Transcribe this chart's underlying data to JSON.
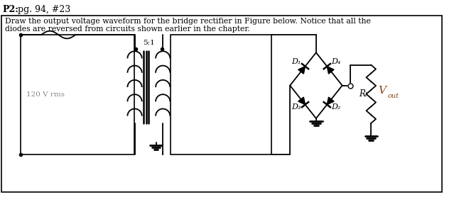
{
  "title_bold": "P2:",
  "title_rest": " pg. 94, #23",
  "description_line1": "Draw the output voltage waveform for the bridge rectifier in Figure below. Notice that all the",
  "description_line2": "diodes are reversed from circuits shown earlier in the chapter.",
  "source_label": "120 V rms",
  "transformer_ratio": "5:1",
  "diode_labels": [
    "D₁",
    "D₂",
    "D₃",
    "D₄"
  ],
  "rl_label": "Rₗ",
  "vout_label": "V",
  "vout_sub": "out",
  "bg_color": "#ffffff",
  "line_color": "#000000",
  "text_color": "#000000",
  "vout_color": "#8B4513"
}
